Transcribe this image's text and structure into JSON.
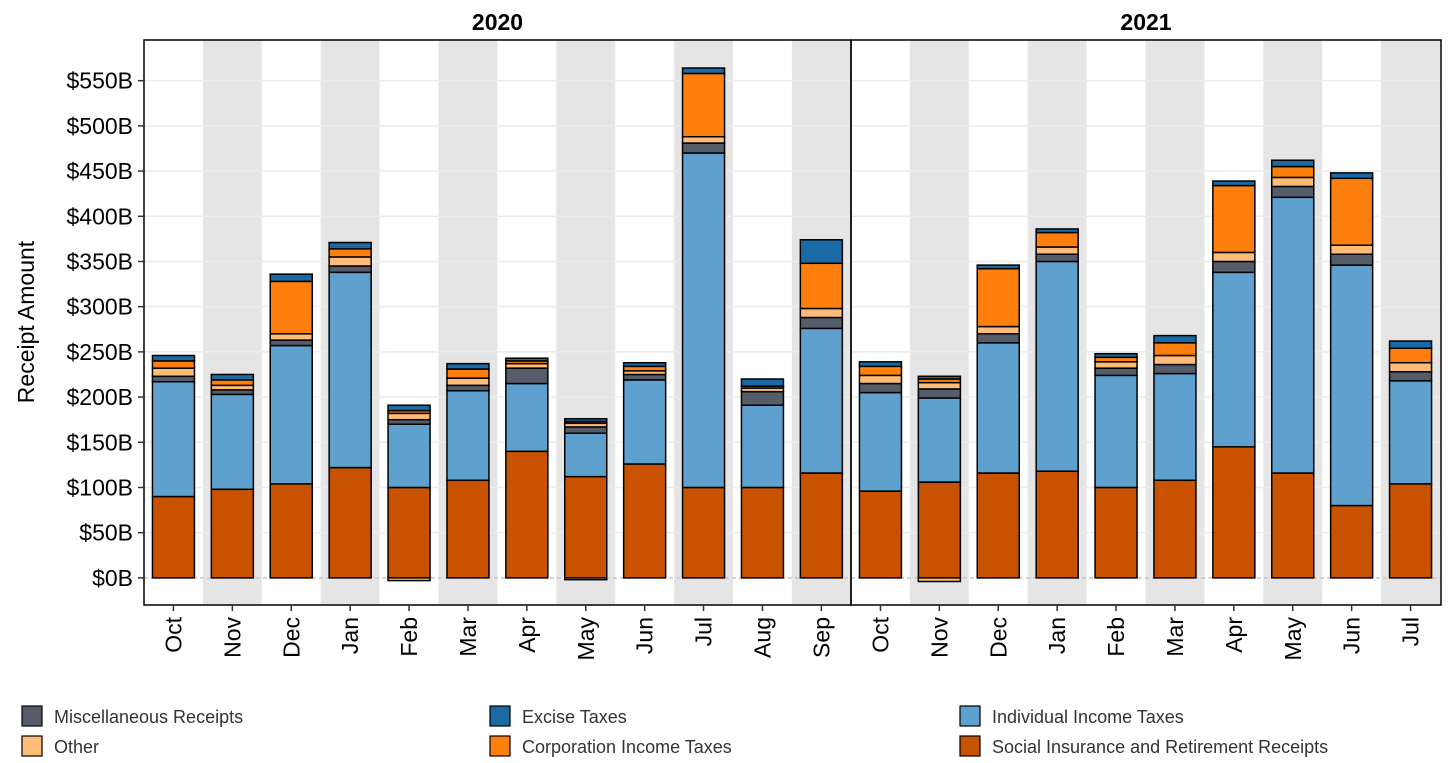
{
  "chart_data": {
    "type": "bar",
    "stacked": true,
    "ylabel": "Receipt Amount",
    "ylim": [
      -30,
      595
    ],
    "yticks": [
      0,
      50,
      100,
      150,
      200,
      250,
      300,
      350,
      400,
      450,
      500,
      550
    ],
    "ytick_labels": [
      "$0B",
      "$50B",
      "$100B",
      "$150B",
      "$200B",
      "$250B",
      "$300B",
      "$350B",
      "$400B",
      "$450B",
      "$500B",
      "$550B"
    ],
    "grid": true,
    "legend_position": "bottom",
    "series_order": [
      "social",
      "individual",
      "misc",
      "other",
      "corp",
      "excise"
    ],
    "legend": [
      {
        "key": "misc",
        "label": "Miscellaneous Receipts",
        "color": "#555d6b"
      },
      {
        "key": "excise",
        "label": "Excise Taxes",
        "color": "#1b6aa5"
      },
      {
        "key": "individual",
        "label": "Individual Income Taxes",
        "color": "#5ea1cf"
      },
      {
        "key": "other",
        "label": "Other",
        "color": "#ffbb78"
      },
      {
        "key": "corp",
        "label": "Corporation Income Taxes",
        "color": "#ff7f0e"
      },
      {
        "key": "social",
        "label": "Social Insurance and Retirement Receipts",
        "color": "#c85200"
      }
    ],
    "facets": [
      {
        "title": "2020",
        "categories": [
          "Oct",
          "Nov",
          "Dec",
          "Jan",
          "Feb",
          "Mar",
          "Apr",
          "May",
          "Jun",
          "Jul",
          "Aug",
          "Sep"
        ],
        "values": {
          "social": [
            90,
            98,
            104,
            122,
            100,
            108,
            140,
            112,
            126,
            100,
            100,
            116
          ],
          "individual": [
            127,
            105,
            153,
            216,
            70,
            99,
            75,
            48,
            93,
            370,
            91,
            160
          ],
          "misc": [
            6,
            5,
            6,
            7,
            5,
            6,
            17,
            7,
            6,
            11,
            15,
            12
          ],
          "other": [
            9,
            5,
            7,
            10,
            7,
            8,
            5,
            4,
            4,
            7,
            4,
            10
          ],
          "corp": [
            8,
            6,
            58,
            9,
            3,
            10,
            3,
            2,
            5,
            70,
            2,
            50
          ],
          "excise": [
            6,
            6,
            8,
            7,
            6,
            6,
            3,
            3,
            4,
            6,
            8,
            26
          ],
          "negative": [
            0,
            0,
            0,
            0,
            -3,
            0,
            0,
            -2,
            0,
            0,
            0,
            0
          ]
        }
      },
      {
        "title": "2021",
        "categories": [
          "Oct",
          "Nov",
          "Dec",
          "Jan",
          "Feb",
          "Mar",
          "Apr",
          "May",
          "Jun",
          "Jul"
        ],
        "values": {
          "social": [
            96,
            106,
            116,
            118,
            100,
            108,
            145,
            116,
            80,
            104
          ],
          "individual": [
            109,
            93,
            144,
            232,
            124,
            118,
            193,
            305,
            266,
            114
          ],
          "misc": [
            10,
            10,
            10,
            8,
            8,
            10,
            12,
            12,
            12,
            10
          ],
          "other": [
            9,
            7,
            8,
            8,
            7,
            10,
            10,
            10,
            10,
            10
          ],
          "corp": [
            10,
            4,
            64,
            16,
            5,
            14,
            74,
            12,
            74,
            16
          ],
          "excise": [
            5,
            3,
            4,
            4,
            4,
            8,
            5,
            7,
            6,
            8
          ],
          "negative": [
            0,
            -4,
            0,
            0,
            0,
            0,
            0,
            0,
            0,
            0
          ]
        }
      }
    ]
  }
}
